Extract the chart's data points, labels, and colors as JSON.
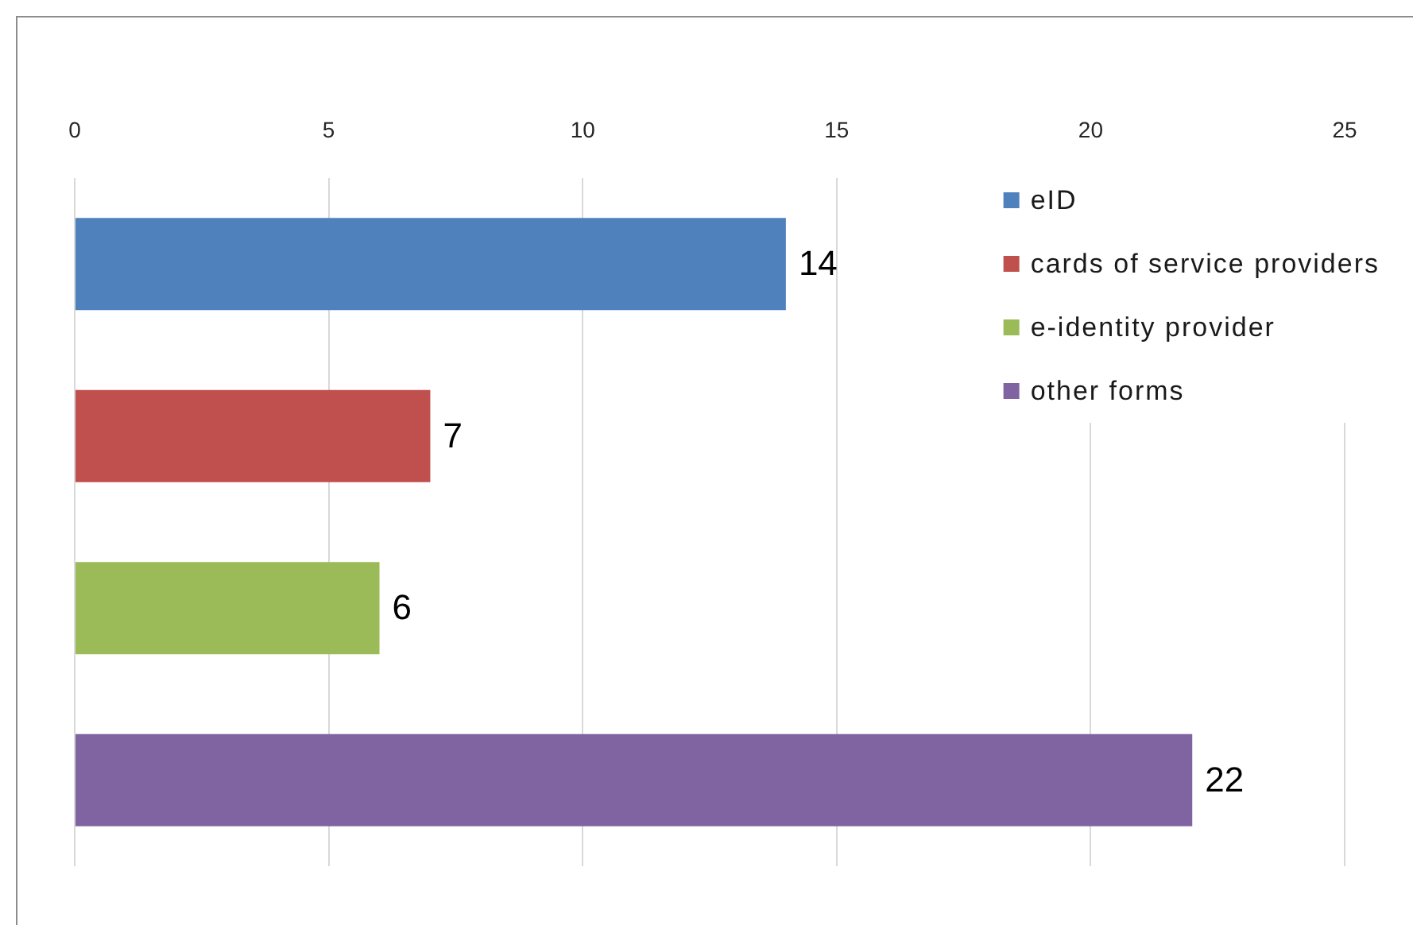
{
  "chart_data": {
    "type": "bar",
    "orientation": "horizontal",
    "categories": [
      null,
      null,
      null,
      null
    ],
    "series": [
      {
        "name": "eID",
        "color": "#4f81bd",
        "values": [
          14,
          null,
          null,
          null
        ]
      },
      {
        "name": "cards of service providers",
        "color": "#c0504d",
        "values": [
          null,
          7,
          null,
          null
        ]
      },
      {
        "name": "e-identity provider",
        "color": "#9bbb59",
        "values": [
          null,
          null,
          6,
          null
        ]
      },
      {
        "name": "other forms",
        "color": "#8064a2",
        "values": [
          null,
          null,
          null,
          22
        ]
      }
    ],
    "xlim": [
      0,
      25
    ],
    "xticks": [
      0,
      5,
      10,
      15,
      20,
      25
    ],
    "grid": "x",
    "legend": "top right",
    "data_labels": true,
    "tick_labels": "x"
  }
}
